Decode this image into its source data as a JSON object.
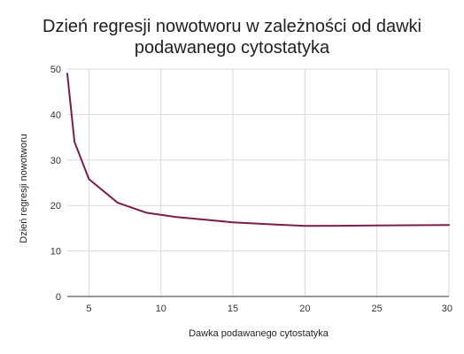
{
  "chart_data": {
    "type": "line",
    "title_lines": [
      "Dzień regresji nowotworu w zależności od dawki",
      "podawanego cytostatyka"
    ],
    "xlabel": "Dawka podawanego cytostatyka",
    "ylabel": "Dzień regresji nowotworu",
    "xlim": [
      3.5,
      30
    ],
    "ylim": [
      0,
      50
    ],
    "x_ticks": [
      5,
      10,
      15,
      20,
      25,
      30
    ],
    "y_ticks": [
      0,
      10,
      20,
      30,
      40,
      50
    ],
    "x_tick_labels": [
      "5",
      "10",
      "15",
      "20",
      "25",
      "30"
    ],
    "y_tick_labels": [
      "0",
      "10",
      "20",
      "30",
      "40",
      "50"
    ],
    "grid": true,
    "series": [
      {
        "color": "#7b1c4c",
        "points": [
          {
            "x": 3.5,
            "y": 49
          },
          {
            "x": 4,
            "y": 34
          },
          {
            "x": 5,
            "y": 25.8
          },
          {
            "x": 7,
            "y": 20.6
          },
          {
            "x": 9,
            "y": 18.4
          },
          {
            "x": 11,
            "y": 17.5
          },
          {
            "x": 13,
            "y": 16.9
          },
          {
            "x": 15,
            "y": 16.3
          },
          {
            "x": 18,
            "y": 15.8
          },
          {
            "x": 20,
            "y": 15.5
          },
          {
            "x": 25,
            "y": 15.6
          },
          {
            "x": 30,
            "y": 15.7
          }
        ]
      }
    ],
    "colors": {
      "line": "#7b1c4c",
      "grid": "#d9d9d9",
      "axis": "#333333"
    }
  }
}
